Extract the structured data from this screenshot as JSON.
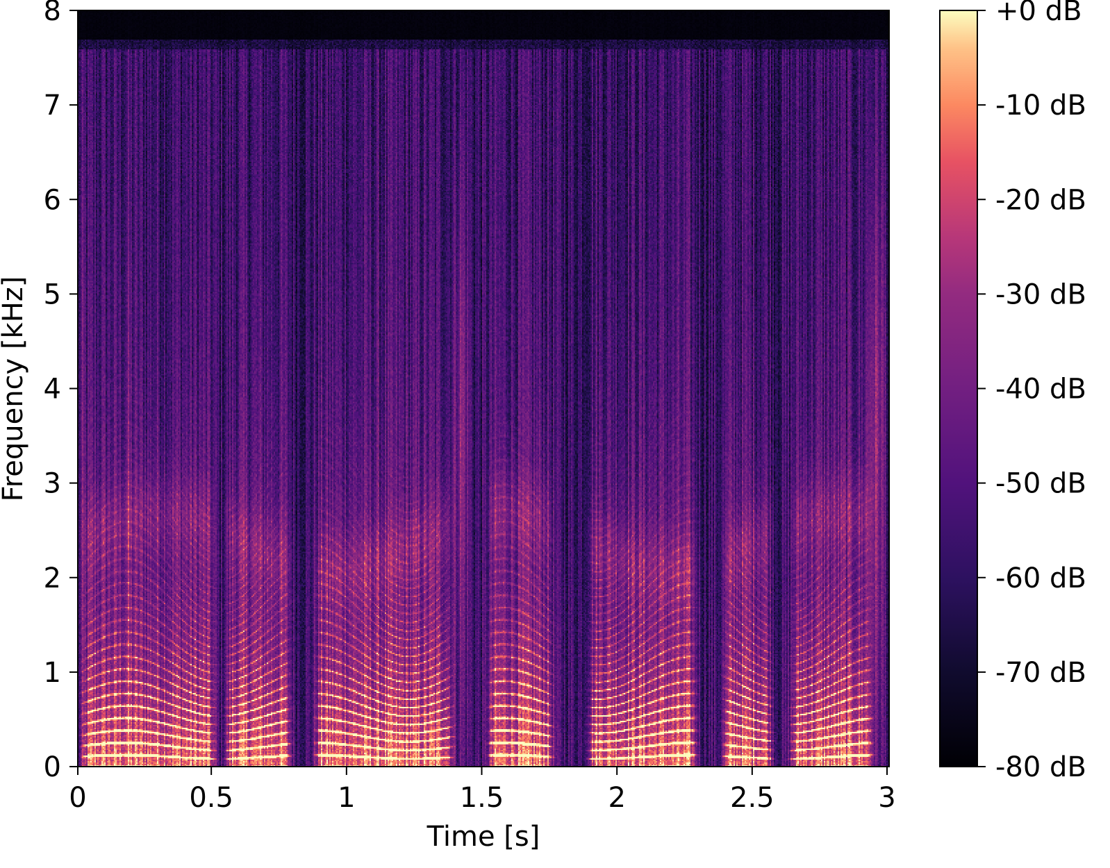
{
  "chart_data": {
    "type": "heatmap",
    "title": "",
    "xlabel": "Time [s]",
    "ylabel": "Frequency [kHz]",
    "xlim": [
      0,
      3.0
    ],
    "ylim": [
      0,
      8
    ],
    "x_ticks": [
      {
        "value": 0,
        "label": "0"
      },
      {
        "value": 0.5,
        "label": "0.5"
      },
      {
        "value": 1,
        "label": "1"
      },
      {
        "value": 1.5,
        "label": "1.5"
      },
      {
        "value": 2,
        "label": "2"
      },
      {
        "value": 2.5,
        "label": "2.5"
      },
      {
        "value": 3,
        "label": "3"
      }
    ],
    "y_ticks": [
      {
        "value": 0,
        "label": "0"
      },
      {
        "value": 1,
        "label": "1"
      },
      {
        "value": 2,
        "label": "2"
      },
      {
        "value": 3,
        "label": "3"
      },
      {
        "value": 4,
        "label": "4"
      },
      {
        "value": 5,
        "label": "5"
      },
      {
        "value": 6,
        "label": "6"
      },
      {
        "value": 7,
        "label": "7"
      },
      {
        "value": 8,
        "label": "8"
      }
    ],
    "colorbar": {
      "colormap": "magma",
      "range_db": [
        -80,
        0
      ],
      "ticks": [
        {
          "value": 0,
          "label": "+0 dB"
        },
        {
          "value": -10,
          "label": "-10 dB"
        },
        {
          "value": -20,
          "label": "-20 dB"
        },
        {
          "value": -30,
          "label": "-30 dB"
        },
        {
          "value": -40,
          "label": "-40 dB"
        },
        {
          "value": -50,
          "label": "-50 dB"
        },
        {
          "value": -60,
          "label": "-60 dB"
        },
        {
          "value": -70,
          "label": "-70 dB"
        },
        {
          "value": -80,
          "label": "-80 dB"
        }
      ]
    },
    "voiced_segments_s": [
      [
        0.0,
        0.52
      ],
      [
        0.53,
        0.8
      ],
      [
        0.86,
        1.4
      ],
      [
        1.5,
        1.77
      ],
      [
        1.87,
        2.3
      ],
      [
        2.37,
        2.58
      ],
      [
        2.62,
        2.95
      ]
    ],
    "fricative_bursts_s": [
      [
        0.0,
        0.03
      ],
      [
        0.17,
        0.2
      ],
      [
        1.37,
        1.46
      ],
      [
        2.9,
        3.0
      ]
    ],
    "grid": false,
    "legend": "none"
  }
}
